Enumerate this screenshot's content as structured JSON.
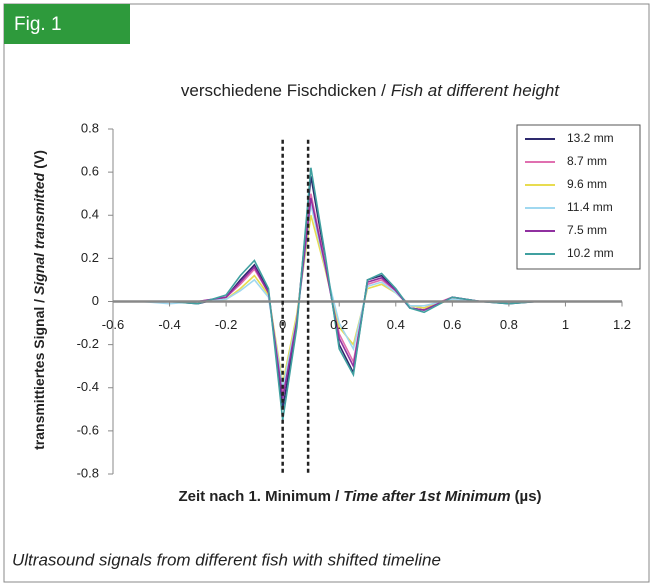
{
  "figure_label": "Fig. 1",
  "caption": "Ultrasound signals from different fish with shifted timeline",
  "chart_data": {
    "type": "line",
    "title": [
      "verschiedene Fischdicken /",
      "Fish at different height"
    ],
    "ylabel": [
      "transmittiertes Signal /",
      "Signal transmitted",
      "(V)"
    ],
    "xlabel": [
      "Zeit nach 1. Minimum /",
      "Time after 1st Minimum",
      "(µs)"
    ],
    "x": [
      -0.5,
      -0.4,
      -0.3,
      -0.2,
      -0.15,
      -0.1,
      -0.05,
      0,
      0.05,
      0.1,
      0.15,
      0.2,
      0.25,
      0.3,
      0.35,
      0.4,
      0.45,
      0.5,
      0.6,
      0.7,
      0.8,
      0.9,
      1.0
    ],
    "series": [
      {
        "name": "13.2 mm",
        "color": "#2e2a6e",
        "values": [
          0,
          0,
          -0.01,
          0.02,
          0.1,
          0.17,
          0.05,
          -0.5,
          -0.1,
          0.58,
          0.2,
          -0.2,
          -0.33,
          0.1,
          0.12,
          0.05,
          -0.03,
          -0.04,
          0.02,
          0,
          -0.01,
          0,
          0
        ]
      },
      {
        "name": "8.7 mm",
        "color": "#e070b0",
        "values": [
          0,
          0,
          0,
          0.02,
          0.08,
          0.15,
          0.04,
          -0.42,
          -0.08,
          0.5,
          0.18,
          -0.15,
          -0.28,
          0.08,
          0.1,
          0.05,
          -0.02,
          -0.03,
          0.02,
          0,
          0,
          0,
          0
        ]
      },
      {
        "name": "9.6 mm",
        "color": "#e8dc50",
        "values": [
          0,
          0,
          0,
          0.01,
          0.06,
          0.12,
          0.03,
          -0.38,
          -0.06,
          0.4,
          0.15,
          -0.12,
          -0.2,
          0.06,
          0.08,
          0.04,
          -0.02,
          -0.03,
          0.01,
          0,
          0,
          0,
          0
        ]
      },
      {
        "name": "11.4 mm",
        "color": "#a0d8f0",
        "values": [
          0,
          -0.01,
          0,
          0.01,
          0.05,
          0.1,
          0.02,
          -0.4,
          -0.08,
          0.45,
          0.16,
          -0.1,
          -0.22,
          0.07,
          0.09,
          0.04,
          -0.02,
          -0.02,
          0.01,
          0,
          0,
          0,
          0
        ]
      },
      {
        "name": "7.5 mm",
        "color": "#9030a0",
        "values": [
          0,
          0,
          0,
          0.02,
          0.09,
          0.16,
          0.04,
          -0.45,
          -0.09,
          0.48,
          0.17,
          -0.17,
          -0.3,
          0.09,
          0.11,
          0.05,
          -0.03,
          -0.04,
          0.02,
          0,
          0,
          0,
          0
        ]
      },
      {
        "name": "10.2 mm",
        "color": "#40a0a0",
        "values": [
          0,
          0,
          -0.01,
          0.03,
          0.12,
          0.19,
          0.06,
          -0.55,
          -0.12,
          0.62,
          0.22,
          -0.22,
          -0.34,
          0.1,
          0.13,
          0.06,
          -0.03,
          -0.05,
          0.02,
          0,
          -0.01,
          0,
          0
        ]
      }
    ],
    "vlines": [
      0,
      0.09
    ],
    "xlim": [
      -0.6,
      1.2
    ],
    "xticks": [
      -0.6,
      -0.4,
      -0.2,
      0,
      0.2,
      0.4,
      0.6,
      0.8,
      1,
      1.2
    ],
    "ylim": [
      -0.8,
      0.8
    ],
    "yticks": [
      -0.8,
      -0.6,
      -0.4,
      -0.2,
      0,
      0.2,
      0.4,
      0.6,
      0.8
    ],
    "legend": "upper right"
  }
}
